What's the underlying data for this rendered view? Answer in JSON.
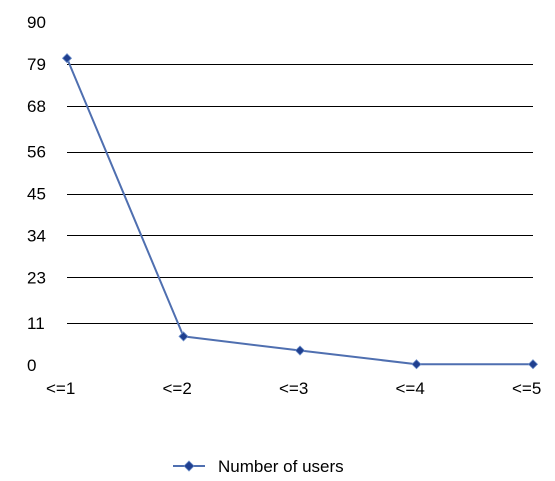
{
  "chart_data": {
    "type": "line",
    "title": "",
    "xlabel": "",
    "ylabel": "",
    "categories": [
      "<=1",
      "<=2",
      "<=3",
      "<=4",
      "<=5"
    ],
    "y_ticks": [
      0,
      11,
      23,
      34,
      45,
      56,
      68,
      79,
      90
    ],
    "y_tick_labels": [
      "0",
      "11",
      "23",
      "34",
      "45",
      "56",
      "68",
      "79",
      "90"
    ],
    "ylim": [
      0,
      90
    ],
    "grid": "horizontal",
    "legend_position": "bottom",
    "series": [
      {
        "name": "Number of users",
        "values": [
          80.5,
          7.5,
          3.8,
          0.2,
          0.2
        ],
        "color": "#4F6FB0",
        "marker_color": "#1F3F8F",
        "marker": "diamond"
      }
    ]
  }
}
